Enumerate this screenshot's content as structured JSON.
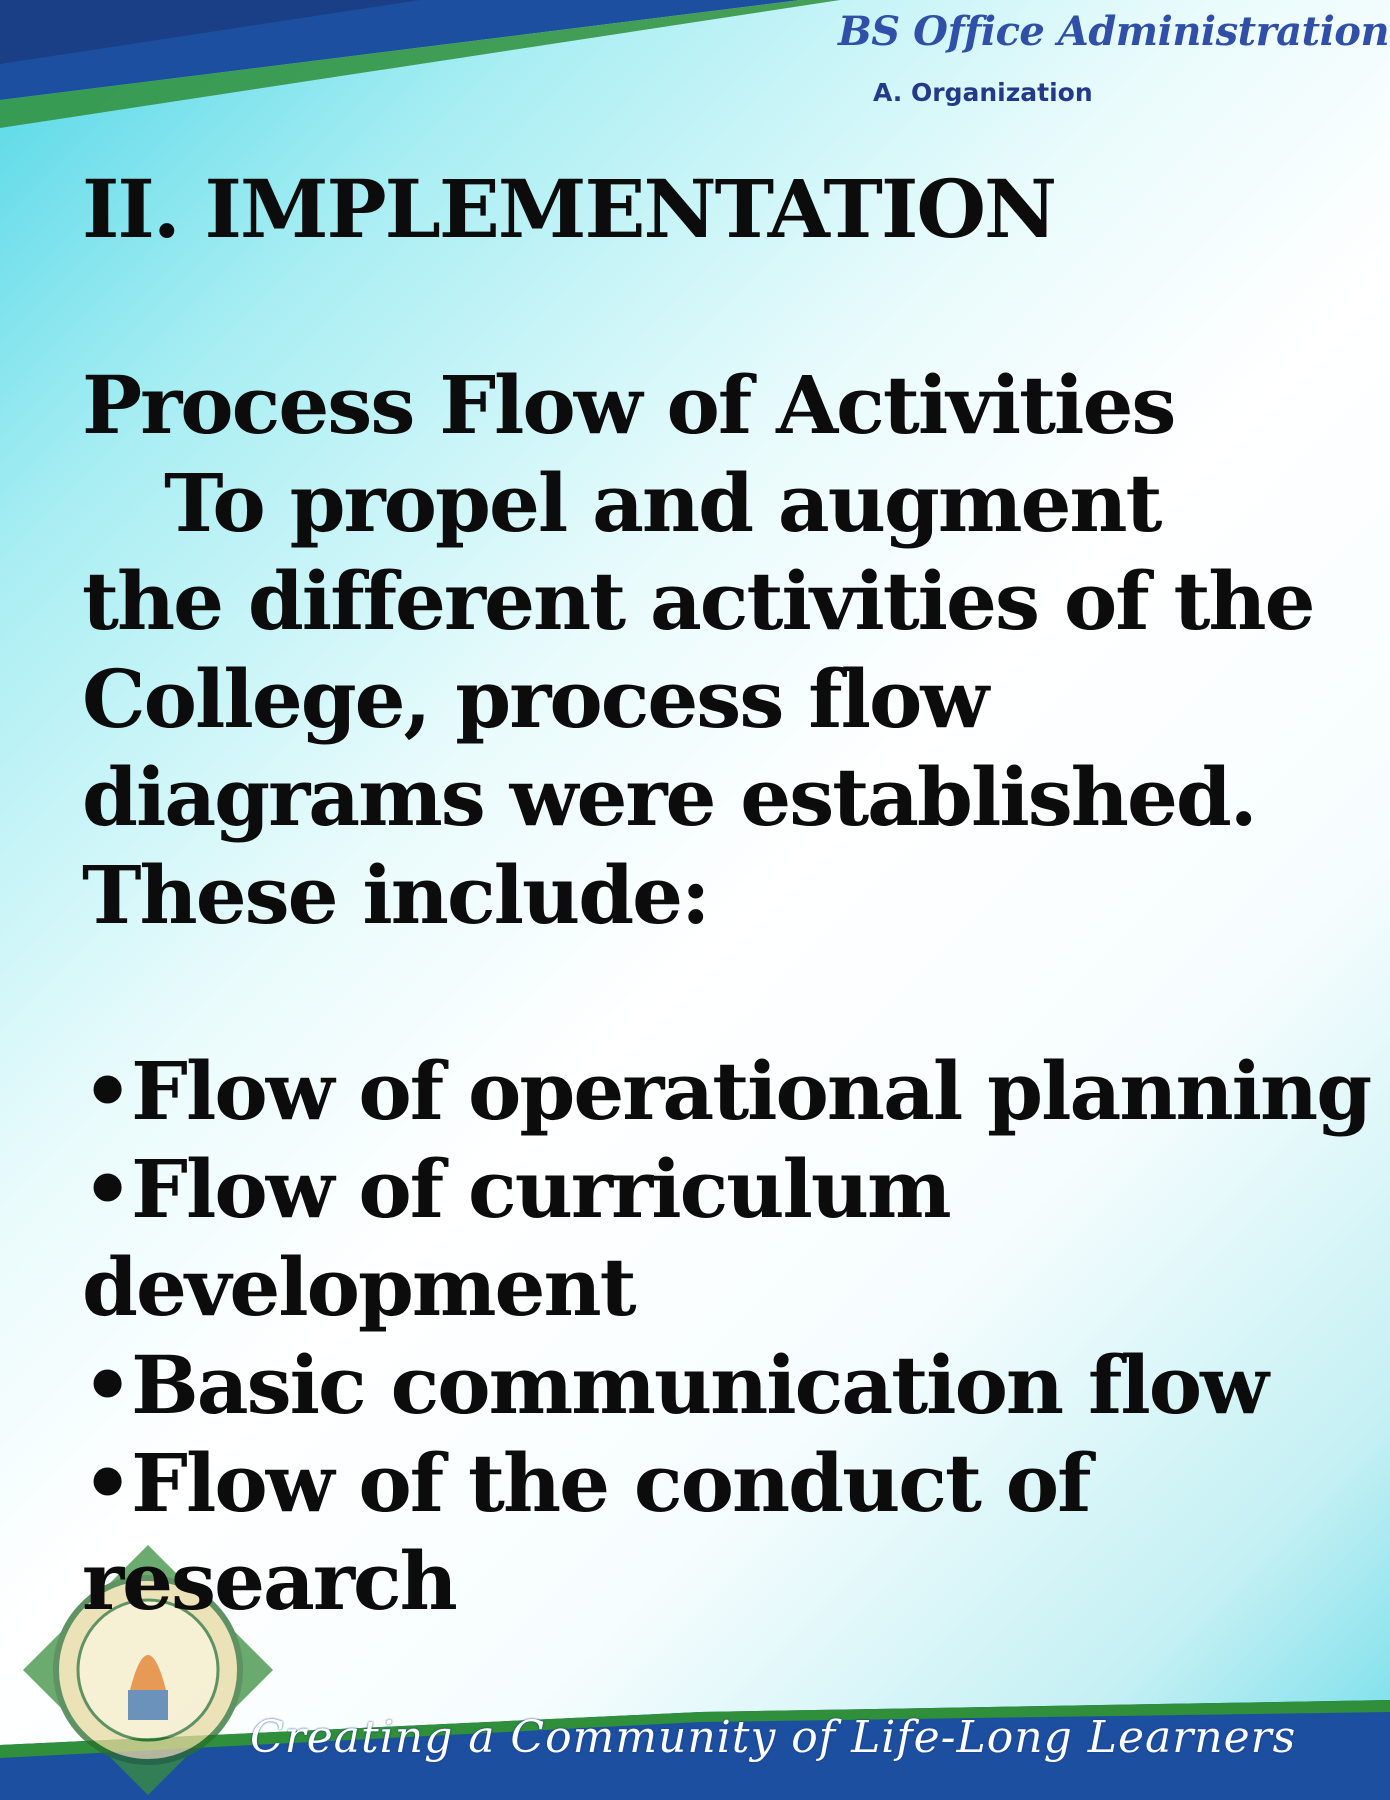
{
  "header": {
    "program": "BS Office Administration",
    "section": "A. Organization"
  },
  "main": {
    "heading": "II. IMPLEMENTATION",
    "subheading": "Process Flow of Activities",
    "paragraph_lines": [
      "To propel and augment",
      "the different activities of the",
      "College, process flow",
      "diagrams were established.",
      "These include:"
    ],
    "bullet_symbol": "•",
    "bullets": [
      "Flow of operational planning",
      "Flow of curriculum development",
      "Basic communication flow",
      "Flow of the conduct of research"
    ]
  },
  "footer": {
    "slogan": "Creating a Community of Life-Long Learners"
  },
  "colors": {
    "header_blue": "#2f4fa8",
    "band_blue": "#1c4fa0",
    "band_green": "#2f8f3a"
  }
}
